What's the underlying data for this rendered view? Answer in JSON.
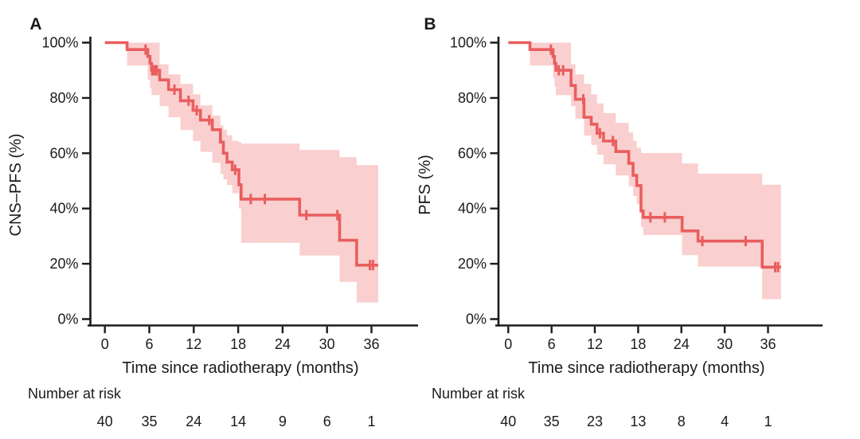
{
  "figure": {
    "background": "#ffffff",
    "colors": {
      "curve_line": "#e95e5e",
      "confidence_band": "#f9d0cf",
      "axis": "#1b1b1b",
      "text": "#1b1b1b"
    }
  },
  "chart_data": [
    {
      "type": "line",
      "subtype": "kaplan-meier-step",
      "panel_label": "A",
      "ylabel": "CNS–PFS (%)",
      "xlabel": "Time since radiotherapy (months)",
      "y_tick_labels": [
        "100%",
        "80%",
        "60%",
        "40%",
        "20%",
        "0%"
      ],
      "y_tick_values": [
        100,
        80,
        60,
        40,
        20,
        0
      ],
      "x_tick_labels": [
        "0",
        "6",
        "12",
        "18",
        "24",
        "30",
        "36"
      ],
      "x_tick_values": [
        0,
        6,
        12,
        18,
        24,
        30,
        36
      ],
      "ylim": [
        0,
        100
      ],
      "xlim": [
        0,
        39
      ],
      "grid": false,
      "legend": "none",
      "t_end": 36.9,
      "survival_steps": [
        [
          0,
          100
        ],
        [
          3.0,
          97.5
        ],
        [
          5.8,
          95
        ],
        [
          6.1,
          92.5
        ],
        [
          6.3,
          90
        ],
        [
          7.4,
          86.5
        ],
        [
          8.6,
          83
        ],
        [
          10.2,
          79
        ],
        [
          11.9,
          75.5
        ],
        [
          12.9,
          72
        ],
        [
          14.5,
          68.5
        ],
        [
          15.6,
          64
        ],
        [
          16.0,
          60
        ],
        [
          16.5,
          56.8
        ],
        [
          17.2,
          54
        ],
        [
          18.1,
          48.6
        ],
        [
          18.4,
          43.4
        ],
        [
          26.3,
          37.6
        ],
        [
          31.7,
          28.5
        ],
        [
          34.0,
          19.5
        ]
      ],
      "censor_marks": [
        [
          5.5,
          97.5
        ],
        [
          6.4,
          90
        ],
        [
          6.7,
          90
        ],
        [
          7.0,
          90
        ],
        [
          9.4,
          83
        ],
        [
          11.3,
          79
        ],
        [
          12.4,
          75.5
        ],
        [
          14.1,
          72
        ],
        [
          17.6,
          54
        ],
        [
          19.7,
          43.4
        ],
        [
          21.6,
          43.4
        ],
        [
          27.2,
          37.6
        ],
        [
          31.4,
          37.6
        ],
        [
          35.8,
          19.5
        ],
        [
          36.2,
          19.5
        ]
      ],
      "confidence_band": [
        [
          3.0,
          91.7,
          100
        ],
        [
          5.8,
          86.5,
          100
        ],
        [
          6.1,
          83.5,
          100
        ],
        [
          6.3,
          81,
          100
        ],
        [
          7.4,
          77,
          92.2
        ],
        [
          8.6,
          73,
          88.5
        ],
        [
          10.2,
          68.4,
          85.1
        ],
        [
          11.9,
          64.4,
          81.3
        ],
        [
          12.9,
          60.5,
          77.3
        ],
        [
          14.5,
          56.5,
          73.6
        ],
        [
          15.6,
          52.5,
          70.1
        ],
        [
          16.0,
          50.5,
          68.5
        ],
        [
          16.5,
          48.5,
          66.5
        ],
        [
          17.2,
          45.5,
          64.5
        ],
        [
          18.1,
          40,
          64
        ],
        [
          18.4,
          27.6,
          63.5
        ],
        [
          26.3,
          23,
          61.2
        ],
        [
          31.7,
          13.5,
          58.6
        ],
        [
          34.0,
          6,
          55.7
        ]
      ],
      "number_at_risk": {
        "header": "Number at risk",
        "times": [
          0,
          6,
          12,
          18,
          24,
          30,
          36
        ],
        "counts": [
          "40",
          "35",
          "24",
          "14",
          "9",
          "6",
          "1"
        ]
      }
    },
    {
      "type": "line",
      "subtype": "kaplan-meier-step",
      "panel_label": "B",
      "ylabel": "PFS (%)",
      "xlabel": "Time since radiotherapy (months)",
      "y_tick_labels": [
        "100%",
        "80%",
        "60%",
        "40%",
        "20%",
        "0%"
      ],
      "y_tick_values": [
        100,
        80,
        60,
        40,
        20,
        0
      ],
      "x_tick_labels": [
        "0",
        "6",
        "12",
        "18",
        "24",
        "30",
        "36"
      ],
      "x_tick_values": [
        0,
        6,
        12,
        18,
        24,
        30,
        36
      ],
      "ylim": [
        0,
        100
      ],
      "xlim": [
        0,
        39
      ],
      "grid": false,
      "legend": "none",
      "t_end": 37.8,
      "survival_steps": [
        [
          0,
          100
        ],
        [
          3.0,
          97.5
        ],
        [
          6.2,
          95
        ],
        [
          6.4,
          92.5
        ],
        [
          6.6,
          90
        ],
        [
          8.7,
          84.5
        ],
        [
          9.3,
          79.5
        ],
        [
          10.5,
          73
        ],
        [
          11.5,
          70.5
        ],
        [
          12.3,
          67.2
        ],
        [
          13.2,
          64.4
        ],
        [
          14.9,
          60.6
        ],
        [
          16.7,
          56.3
        ],
        [
          17.3,
          52
        ],
        [
          17.8,
          48.3
        ],
        [
          18.4,
          39.1
        ],
        [
          18.7,
          36.8
        ],
        [
          24.1,
          31.9
        ],
        [
          26.3,
          28.2
        ],
        [
          35.2,
          18.8
        ]
      ],
      "censor_marks": [
        [
          5.9,
          97.5
        ],
        [
          7.0,
          90
        ],
        [
          7.6,
          90
        ],
        [
          10.4,
          79.5
        ],
        [
          12.7,
          67.2
        ],
        [
          14.5,
          64.4
        ],
        [
          19.7,
          36.8
        ],
        [
          21.7,
          36.8
        ],
        [
          26.9,
          28.2
        ],
        [
          32.9,
          28.2
        ],
        [
          37.0,
          18.8
        ],
        [
          37.4,
          18.8
        ]
      ],
      "confidence_band": [
        [
          3.0,
          91.7,
          100
        ],
        [
          6.2,
          87,
          100
        ],
        [
          6.4,
          84,
          100
        ],
        [
          6.6,
          81,
          100
        ],
        [
          8.7,
          77,
          92.2
        ],
        [
          9.3,
          72.5,
          88.5
        ],
        [
          10.5,
          66.4,
          85.1
        ],
        [
          11.5,
          63,
          81.3
        ],
        [
          12.3,
          59.5,
          78
        ],
        [
          13.2,
          56,
          74.5
        ],
        [
          14.9,
          52,
          71
        ],
        [
          16.7,
          48,
          67.5
        ],
        [
          17.3,
          44.5,
          64.5
        ],
        [
          17.8,
          41.5,
          62
        ],
        [
          18.4,
          33.3,
          60.1
        ],
        [
          18.7,
          30.4,
          60.1
        ],
        [
          24.1,
          23.1,
          56.3
        ],
        [
          26.3,
          19,
          52.6
        ],
        [
          35.2,
          7.2,
          48.6
        ]
      ],
      "number_at_risk": {
        "header": "Number at risk",
        "times": [
          0,
          6,
          12,
          18,
          24,
          30,
          36
        ],
        "counts": [
          "40",
          "35",
          "23",
          "13",
          "8",
          "4",
          "1"
        ]
      }
    }
  ]
}
